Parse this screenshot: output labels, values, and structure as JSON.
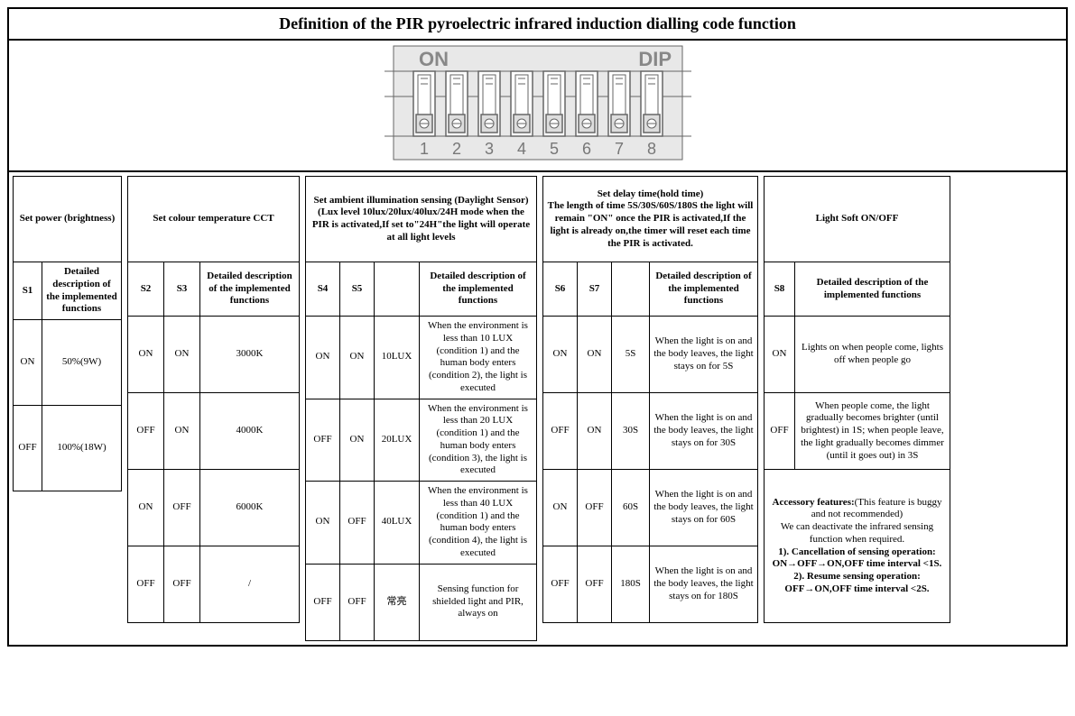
{
  "title": "Definition of the PIR pyroelectric infrared induction dialling code function",
  "dip": {
    "label_on": "ON",
    "label_dip": "DIP",
    "switch_count": 8,
    "numbers": [
      "1",
      "2",
      "3",
      "4",
      "5",
      "6",
      "7",
      "8"
    ],
    "bg_color": "#e8e8e8",
    "outline": "#666666"
  },
  "section1": {
    "header": "Set power (brightness)",
    "sub_s": "S1",
    "sub_desc": "Detailed description of the implemented functions",
    "col_widths": {
      "s": 32,
      "desc": 88
    },
    "rows": [
      {
        "s1": "ON",
        "desc": "50%(9W)"
      },
      {
        "s1": "OFF",
        "desc": "100%(18W)"
      }
    ]
  },
  "section2": {
    "header": "Set colour temperature CCT",
    "sub_s1": "S2",
    "sub_s2": "S3",
    "sub_desc": "Detailed description of the implemented functions",
    "col_widths": {
      "s": 40,
      "desc": 110
    },
    "rows": [
      {
        "s2": "ON",
        "s3": "ON",
        "desc": "3000K"
      },
      {
        "s2": "OFF",
        "s3": "ON",
        "desc": "4000K"
      },
      {
        "s2": "ON",
        "s3": "OFF",
        "desc": "6000K"
      },
      {
        "s2": "OFF",
        "s3": "OFF",
        "desc": "/"
      }
    ]
  },
  "section3": {
    "header": "Set ambient illumination sensing (Daylight Sensor)\n(Lux level 10lux/20lux/40lux/24H mode when the PIR is activated,If set to\"24H\"the light will operate at all light levels",
    "sub_s1": "S4",
    "sub_s2": "S5",
    "sub_val": "",
    "sub_desc": "Detailed description of the implemented functions",
    "col_widths": {
      "s": 38,
      "val": 50,
      "desc": 130
    },
    "rows": [
      {
        "s4": "ON",
        "s5": "ON",
        "val": "10LUX",
        "desc": "When the environment is less than 10 LUX (condition 1) and the human body enters (condition 2), the light is executed"
      },
      {
        "s4": "OFF",
        "s5": "ON",
        "val": "20LUX",
        "desc": "When the environment is less than 20 LUX (condition 1) and the human body enters (condition 3), the light is executed"
      },
      {
        "s4": "ON",
        "s5": "OFF",
        "val": "40LUX",
        "desc": "When the environment is less than 40 LUX (condition 1) and the human body enters (condition 4), the light is executed"
      },
      {
        "s4": "OFF",
        "s5": "OFF",
        "val": "常亮",
        "desc": "Sensing function for shielded light and PIR, always on"
      }
    ]
  },
  "section4": {
    "header": "Set delay time(hold time)\nThe length of time 5S/30S/60S/180S the light will remain \"ON\" once the PIR is activated,If the light is already on,the timer will reset each time the PIR is activated.",
    "sub_s1": "S6",
    "sub_s2": "S7",
    "sub_val": "",
    "sub_desc": "Detailed description of the implemented functions",
    "col_widths": {
      "s": 38,
      "val": 42,
      "desc": 120
    },
    "rows": [
      {
        "s6": "ON",
        "s7": "ON",
        "val": "5S",
        "desc": "When the light is on and the body leaves, the light stays on for 5S"
      },
      {
        "s6": "OFF",
        "s7": "ON",
        "val": "30S",
        "desc": "When the light is on and the body leaves, the light stays on for 30S"
      },
      {
        "s6": "ON",
        "s7": "OFF",
        "val": "60S",
        "desc": "When the light is on and the body leaves, the light stays on for 60S"
      },
      {
        "s6": "OFF",
        "s7": "OFF",
        "val": "180S",
        "desc": "When the light is on and the body leaves, the light stays on for 180S"
      }
    ]
  },
  "section5": {
    "header": "Light Soft ON/OFF",
    "sub_s": "S8",
    "sub_desc": "Detailed description of the implemented functions",
    "col_widths": {
      "s": 34,
      "desc": 172
    },
    "rows": [
      {
        "s8": "ON",
        "desc": "Lights on when people come, lights off when people go"
      },
      {
        "s8": "OFF",
        "desc": "When people come, the light gradually becomes brighter (until brightest) in 1S; when people leave, the light gradually becomes dimmer (until it goes out) in 3S"
      }
    ],
    "footnote_bold1": "Accessory features:",
    "footnote_text1": "(This feature is buggy and not recommended)",
    "footnote_text2": "We can deactivate the infrared sensing function when required.",
    "footnote_bold2": "1). Cancellation of sensing operation: ON→OFF→ON,OFF time interval <1S.",
    "footnote_bold3": "2). Resume sensing operation: OFF→ON,OFF time interval <2S."
  },
  "row_heights": {
    "header": 95,
    "sub": 60,
    "data2": 95,
    "data4": 85
  }
}
